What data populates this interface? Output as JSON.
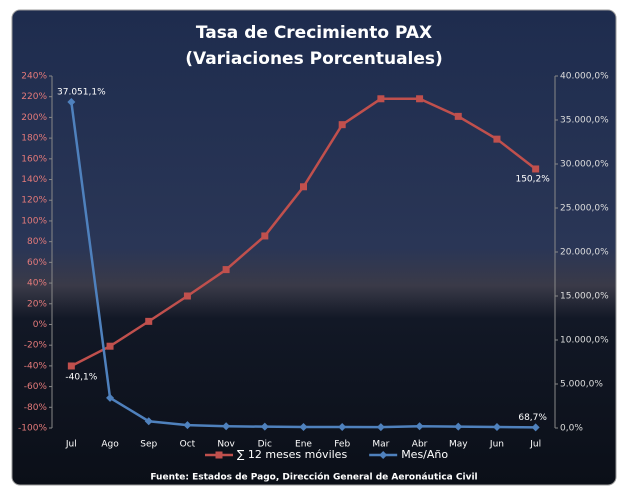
{
  "chart_data": {
    "type": "line",
    "title": "Tasa de Crecimiento PAX",
    "subtitle": "(Variaciones Porcentuales)",
    "source": "Fuente: Estados de Pago, Dirección General de Aeronáutica Civil",
    "categories": [
      "Jul",
      "Ago",
      "Sep",
      "Oct",
      "Nov",
      "Dic",
      "Ene",
      "Feb",
      "Mar",
      "Abr",
      "May",
      "Jun",
      "Jul"
    ],
    "ylim": [
      -100,
      240
    ],
    "yticks": [
      {
        "value": -100,
        "label": "-100%"
      },
      {
        "value": -80,
        "label": "-80%"
      },
      {
        "value": -60,
        "label": "-60%"
      },
      {
        "value": -40,
        "label": "-40%"
      },
      {
        "value": -20,
        "label": "-20%"
      },
      {
        "value": 0,
        "label": "0%"
      },
      {
        "value": 20,
        "label": "20%"
      },
      {
        "value": 40,
        "label": "40%"
      },
      {
        "value": 60,
        "label": "60%"
      },
      {
        "value": 80,
        "label": "80%"
      },
      {
        "value": 100,
        "label": "100%"
      },
      {
        "value": 120,
        "label": "120%"
      },
      {
        "value": 140,
        "label": "140%"
      },
      {
        "value": 160,
        "label": "160%"
      },
      {
        "value": 180,
        "label": "180%"
      },
      {
        "value": 200,
        "label": "200%"
      },
      {
        "value": 220,
        "label": "220%"
      },
      {
        "value": 240,
        "label": "240%"
      }
    ],
    "y2lim": [
      0,
      40000
    ],
    "y2ticks": [
      {
        "value": 0,
        "label": "0,0%"
      },
      {
        "value": 5000,
        "label": "5.000,0%"
      },
      {
        "value": 10000,
        "label": "10.000,0%"
      },
      {
        "value": 15000,
        "label": "15.000,0%"
      },
      {
        "value": 20000,
        "label": "20.000,0%"
      },
      {
        "value": 25000,
        "label": "25.000,0%"
      },
      {
        "value": 30000,
        "label": "30.000,0%"
      },
      {
        "value": 35000,
        "label": "35.000,0%"
      },
      {
        "value": 40000,
        "label": "40.000,0%"
      }
    ],
    "series": [
      {
        "name": "∑ 12 meses móviles",
        "color": "#c0504d",
        "marker": "square",
        "values": [
          -40.1,
          -21,
          3,
          27.5,
          53,
          85.5,
          133,
          193,
          218,
          218,
          201,
          179,
          150.2
        ],
        "value_labels": [
          "-40,1%",
          null,
          null,
          null,
          null,
          null,
          null,
          null,
          null,
          null,
          null,
          null,
          "150,2%"
        ]
      },
      {
        "name": "Mes/Año",
        "color": "#4f81bd",
        "marker": "diamond",
        "axis": "y2",
        "values": [
          37051.1,
          3425,
          770,
          330,
          200,
          150,
          120,
          110,
          100,
          200,
          150,
          120,
          68.7
        ],
        "value_labels": [
          "37.051,1%",
          null,
          null,
          null,
          null,
          null,
          null,
          null,
          null,
          null,
          null,
          null,
          "68,7%"
        ]
      }
    ]
  }
}
